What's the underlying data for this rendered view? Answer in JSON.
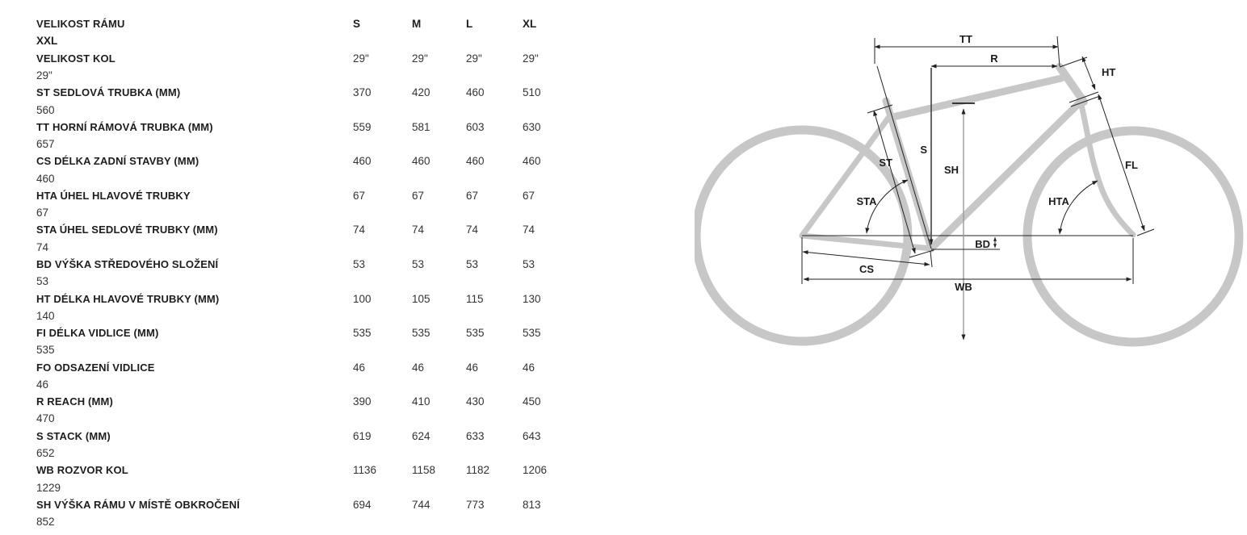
{
  "table": {
    "header_row": {
      "label": "VELIKOST RÁMU",
      "sizes": [
        "S",
        "M",
        "L",
        "XL",
        "XXL"
      ]
    },
    "rows": [
      {
        "label": "VELIKOST KOL",
        "values": [
          "29\"",
          "29\"",
          "29\"",
          "29\"",
          "29\""
        ]
      },
      {
        "label": "ST SEDLOVÁ TRUBKA (MM)",
        "values": [
          "370",
          "420",
          "460",
          "510",
          "560"
        ]
      },
      {
        "label": "TT HORNÍ RÁMOVÁ TRUBKA (MM)",
        "values": [
          "559",
          "581",
          "603",
          "630",
          "657"
        ]
      },
      {
        "label": "CS DÉLKA ZADNÍ STAVBY (MM)",
        "values": [
          "460",
          "460",
          "460",
          "460",
          "460"
        ]
      },
      {
        "label": "HTA ÚHEL HLAVOVÉ TRUBKY",
        "values": [
          "67",
          "67",
          "67",
          "67",
          "67"
        ]
      },
      {
        "label": "STA ÚHEL SEDLOVÉ TRUBKY (MM)",
        "values": [
          "74",
          "74",
          "74",
          "74",
          "74"
        ]
      },
      {
        "label": "BD VÝŠKA STŘEDOVÉHO SLOŽENÍ",
        "values": [
          "53",
          "53",
          "53",
          "53",
          "53"
        ]
      },
      {
        "label": "HT DÉLKA HLAVOVÉ TRUBKY (MM)",
        "values": [
          "100",
          "105",
          "115",
          "130",
          "140"
        ]
      },
      {
        "label": "FI DÉLKA VIDLICE (MM)",
        "values": [
          "535",
          "535",
          "535",
          "535",
          "535"
        ]
      },
      {
        "label": "FO ODSAZENÍ VIDLICE",
        "values": [
          "46",
          "46",
          "46",
          "46",
          "46"
        ]
      },
      {
        "label": "R REACH (MM)",
        "values": [
          "390",
          "410",
          "430",
          "450",
          "470"
        ]
      },
      {
        "label": "S STACK (MM)",
        "values": [
          "619",
          "624",
          "633",
          "643",
          "652"
        ]
      },
      {
        "label": "WB ROZVOR KOL",
        "values": [
          "1136",
          "1158",
          "1182",
          "1206",
          "1229"
        ]
      },
      {
        "label": "SH VÝŠKA RÁMU V MÍSTĚ OBKROČENÍ",
        "values": [
          "694",
          "744",
          "773",
          "813",
          "852"
        ]
      }
    ]
  },
  "diagram": {
    "labels": {
      "tt": "TT",
      "r": "R",
      "ht": "HT",
      "st": "ST",
      "s": "S",
      "sh": "SH",
      "fl": "FL",
      "sta": "STA",
      "hta": "HTA",
      "bd": "BD",
      "cs": "CS",
      "wb": "WB"
    }
  },
  "colors": {
    "frame_gray": "#c7c7c7",
    "dimension_line": "#222222",
    "label_text": "#1d1d20",
    "value_text": "#333338"
  }
}
